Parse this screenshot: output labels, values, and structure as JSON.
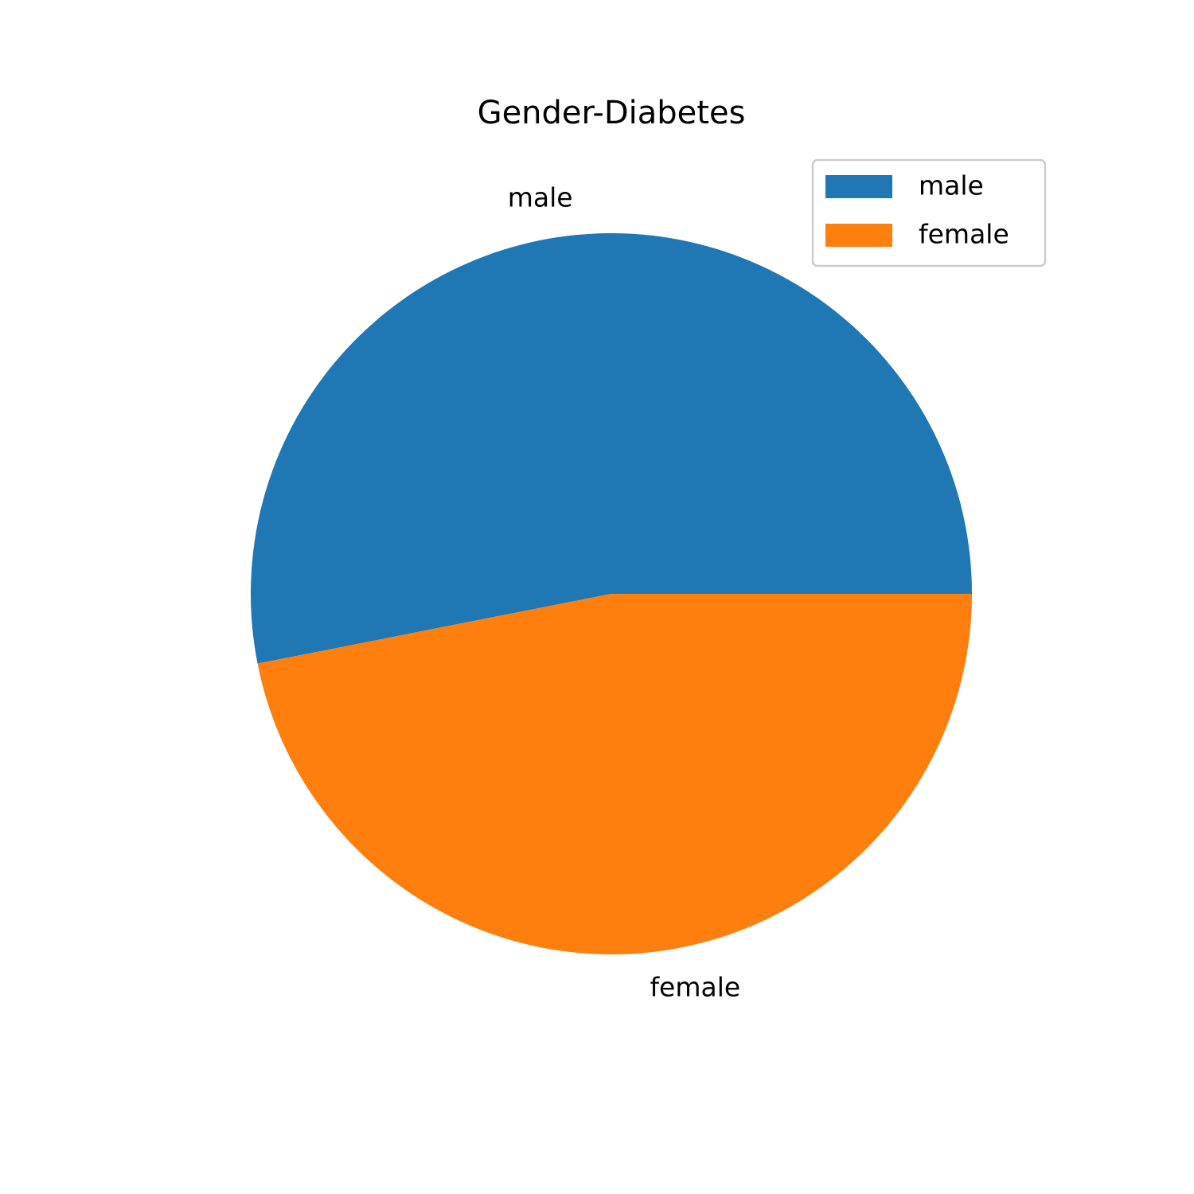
{
  "chart_data": {
    "type": "pie",
    "title": "Gender-Diabetes",
    "categories": [
      "male",
      "female"
    ],
    "values": [
      53.1,
      46.9
    ],
    "colors": [
      "#1f77b4",
      "#ff7f0e"
    ],
    "start_angle_deg": 0,
    "direction": "counterclockwise",
    "legend": {
      "placement": "top-right",
      "entries": [
        "male",
        "female"
      ]
    }
  }
}
